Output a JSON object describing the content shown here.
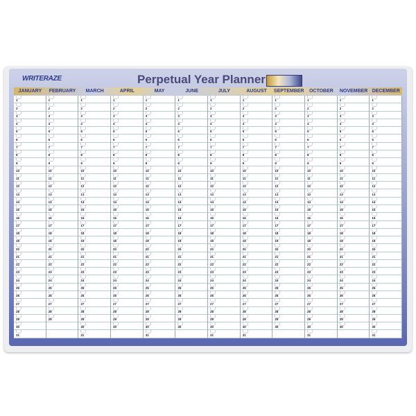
{
  "brand": "WRITERAZE",
  "title": "Perpetual Year Planner",
  "months": [
    {
      "name": "JANUARY",
      "days": 31
    },
    {
      "name": "FEBRUARY",
      "days": 29
    },
    {
      "name": "MARCH",
      "days": 31
    },
    {
      "name": "APRIL",
      "days": 30
    },
    {
      "name": "MAY",
      "days": 31
    },
    {
      "name": "JUNE",
      "days": 30
    },
    {
      "name": "JULY",
      "days": 31
    },
    {
      "name": "AUGUST",
      "days": 31
    },
    {
      "name": "SEPTEMBER",
      "days": 30
    },
    {
      "name": "OCTOBER",
      "days": 31
    },
    {
      "name": "NOVEMBER",
      "days": 30
    },
    {
      "name": "DECEMBER",
      "days": 31
    }
  ],
  "colors": {
    "frame": "#5a67b0",
    "header_text": "#2d3a88",
    "gold": "#d8b765"
  }
}
